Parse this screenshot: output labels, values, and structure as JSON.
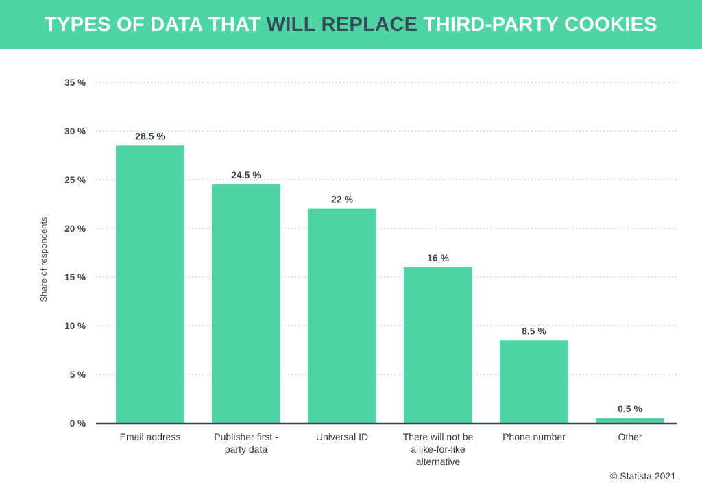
{
  "header": {
    "title_part1": "TYPES OF DATA THAT ",
    "title_highlight": "WILL REPLACE",
    "title_part2": " THIRD-PARTY COOKIES"
  },
  "colors": {
    "header_bg": "#4fd5a3",
    "bar": "#4fd5a3",
    "highlight_text": "#3a4a5a",
    "axis": "#3a4553"
  },
  "chart_data": {
    "type": "bar",
    "categories": [
      [
        "Email address"
      ],
      [
        "Publisher first -",
        "party data"
      ],
      [
        "Universal ID"
      ],
      [
        "There will not be",
        "a like-for-like",
        "alternative"
      ],
      [
        "Phone number"
      ],
      [
        "Other"
      ]
    ],
    "values": [
      28.5,
      24.5,
      22,
      16,
      8.5,
      0.5
    ],
    "value_labels": [
      "28.5 %",
      "24.5 %",
      "22 %",
      "16 %",
      "8.5 %",
      "0.5 %"
    ],
    "ylabel": "Share of respondents",
    "ylim": [
      0,
      35
    ],
    "yticks": [
      0,
      5,
      10,
      15,
      20,
      25,
      30,
      35
    ],
    "ytick_labels": [
      "0 %",
      "5 %",
      "10 %",
      "15 %",
      "20 %",
      "25 %",
      "30 %",
      "35 %"
    ],
    "grid": true
  },
  "footer": {
    "credit": "© Statista 2021"
  }
}
